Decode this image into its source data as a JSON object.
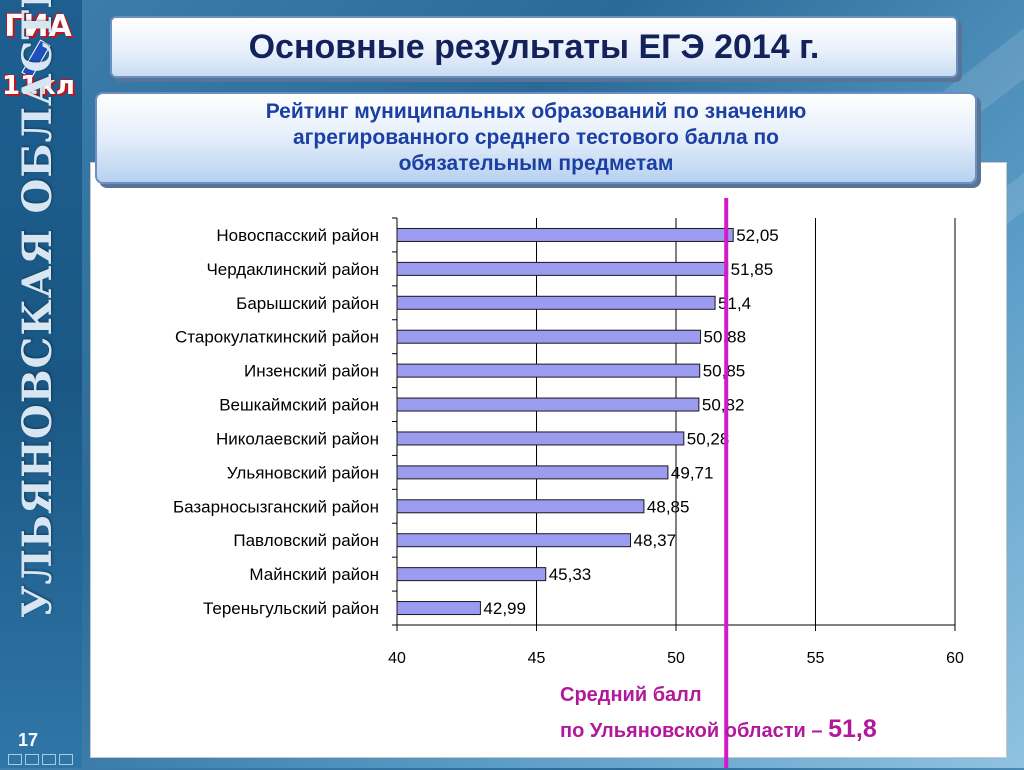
{
  "title": "Основные результаты ЕГЭ 2014 г.",
  "subtitle": {
    "line1": "Рейтинг муниципальных образований по значению",
    "line2": "агрегированного среднего тестового балла по",
    "line3": "обязательным предметам"
  },
  "sidebar": {
    "vertical_text": "УЛЬЯНОВСКАЯ ОБЛАСТЬ",
    "logo_top": "ГИА",
    "logo_bottom": "11кл",
    "slide_number": "17"
  },
  "average": {
    "line1": "Средний балл",
    "line2": "по Ульяновской области –",
    "value": "51,8",
    "numeric": 51.8
  },
  "colors": {
    "bar_fill": "#9b9bf0",
    "bar_stroke": "#1a1a1a",
    "avg_line": "#d41ac8",
    "title_text": "#13225b",
    "subtitle_text": "#1b3fa4"
  },
  "chart_data": {
    "type": "bar",
    "orientation": "horizontal",
    "categories": [
      "Новоспасский район",
      "Чердаклинский район",
      "Барышский район",
      "Старокулаткинский район",
      "Инзенский район",
      "Вешкаймский район",
      "Николаевский район",
      "Ульяновский район",
      "Базарносызганский район",
      "Павловский район",
      "Майнский район",
      "Тереньгульский район"
    ],
    "values": [
      52.05,
      51.85,
      51.4,
      50.88,
      50.85,
      50.82,
      50.28,
      49.71,
      48.85,
      48.37,
      45.33,
      42.99
    ],
    "value_labels": [
      "52,05",
      "51,85",
      "51,4",
      "50,88",
      "50,85",
      "50,82",
      "50,28",
      "49,71",
      "48,85",
      "48,37",
      "45,33",
      "42,99"
    ],
    "xlim": [
      40,
      60
    ],
    "xticks": [
      40,
      45,
      50,
      55,
      60
    ],
    "grid": true,
    "reference_line": 51.8
  }
}
